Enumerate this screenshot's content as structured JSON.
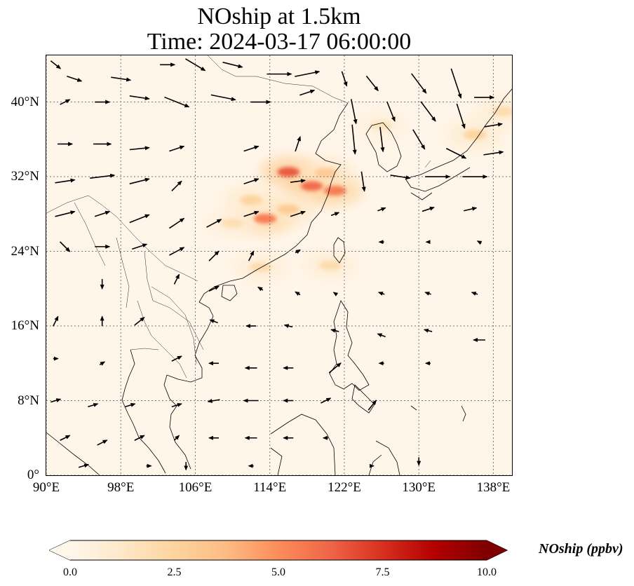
{
  "title": {
    "line1": "NOship at 1.5km",
    "line2": "Time: 2024-03-17 06:00:00"
  },
  "map": {
    "projection": "PlateCarree",
    "lon_range": [
      90,
      140
    ],
    "lat_range": [
      0,
      45
    ],
    "gridlines": "dotted grey",
    "coastlines": true,
    "borders": true,
    "lon_ticks": [
      {
        "value": 90,
        "label": "90°E"
      },
      {
        "value": 98,
        "label": "98°E"
      },
      {
        "value": 106,
        "label": "106°E"
      },
      {
        "value": 114,
        "label": "114°E"
      },
      {
        "value": 122,
        "label": "122°E"
      },
      {
        "value": 130,
        "label": "130°E"
      },
      {
        "value": 138,
        "label": "138°E"
      }
    ],
    "lat_ticks": [
      {
        "value": 0,
        "label": "0°"
      },
      {
        "value": 8,
        "label": "8°N"
      },
      {
        "value": 16,
        "label": "16°N"
      },
      {
        "value": 24,
        "label": "24°N"
      },
      {
        "value": 32,
        "label": "32°N"
      },
      {
        "value": 40,
        "label": "40°N"
      }
    ],
    "field": {
      "variable": "NOship",
      "units": "ppbv",
      "hotspots": [
        {
          "lon": 116,
          "lat": 32.5,
          "value": 6.5
        },
        {
          "lon": 118.5,
          "lat": 31.0,
          "value": 6.0
        },
        {
          "lon": 121,
          "lat": 30.5,
          "value": 5.5
        },
        {
          "lon": 113.5,
          "lat": 27.5,
          "value": 5.5
        },
        {
          "lon": 116,
          "lat": 28.5,
          "value": 3.0
        },
        {
          "lon": 112,
          "lat": 29.5,
          "value": 2.5
        },
        {
          "lon": 120,
          "lat": 32.4,
          "value": 3.0
        },
        {
          "lon": 110,
          "lat": 27.0,
          "value": 1.8
        },
        {
          "lon": 136,
          "lat": 36.5,
          "value": 2.5
        },
        {
          "lon": 139,
          "lat": 39.0,
          "value": 2.0
        },
        {
          "lon": 126,
          "lat": 37.5,
          "value": 1.5
        },
        {
          "lon": 120.5,
          "lat": 22.5,
          "value": 2.0
        },
        {
          "lon": 113,
          "lat": 22.3,
          "value": 2.0
        }
      ]
    },
    "wind_vectors": [
      {
        "lon": 91,
        "lat": 44,
        "u": 1.0,
        "v": -0.8
      },
      {
        "lon": 93,
        "lat": 42.5,
        "u": 1.5,
        "v": -0.5
      },
      {
        "lon": 98,
        "lat": 42.5,
        "u": 2.0,
        "v": -0.3
      },
      {
        "lon": 103,
        "lat": 44,
        "u": 1.5,
        "v": 0.0
      },
      {
        "lon": 106,
        "lat": 44,
        "u": 2.0,
        "v": -1.2
      },
      {
        "lon": 110,
        "lat": 44,
        "u": 2.0,
        "v": -0.5
      },
      {
        "lon": 115,
        "lat": 43,
        "u": 2.5,
        "v": 0.0
      },
      {
        "lon": 118,
        "lat": 43,
        "u": 2.5,
        "v": 0.5
      },
      {
        "lon": 122,
        "lat": 42.5,
        "u": 0.5,
        "v": -1.5
      },
      {
        "lon": 125,
        "lat": 42,
        "u": 1.2,
        "v": -1.5
      },
      {
        "lon": 130,
        "lat": 42,
        "u": 1.5,
        "v": -2.0
      },
      {
        "lon": 134,
        "lat": 42,
        "u": 1.0,
        "v": -3.0
      },
      {
        "lon": 137,
        "lat": 40.5,
        "u": 2.0,
        "v": 0.0
      },
      {
        "lon": 92,
        "lat": 40,
        "u": 1.0,
        "v": 0.5
      },
      {
        "lon": 96,
        "lat": 40,
        "u": 1.5,
        "v": 0.0
      },
      {
        "lon": 100,
        "lat": 40.5,
        "u": 2.0,
        "v": -0.3
      },
      {
        "lon": 104,
        "lat": 40,
        "u": 2.5,
        "v": -1.0
      },
      {
        "lon": 109,
        "lat": 40.5,
        "u": 2.5,
        "v": -0.5
      },
      {
        "lon": 113,
        "lat": 40,
        "u": 2.0,
        "v": 0.0
      },
      {
        "lon": 118,
        "lat": 41,
        "u": 1.5,
        "v": 0.5
      },
      {
        "lon": 123,
        "lat": 39,
        "u": 0.5,
        "v": -2.5
      },
      {
        "lon": 127,
        "lat": 39,
        "u": 0.8,
        "v": -2.0
      },
      {
        "lon": 131,
        "lat": 39,
        "u": 1.5,
        "v": -2.0
      },
      {
        "lon": 134.5,
        "lat": 38.5,
        "u": 0.8,
        "v": -2.5
      },
      {
        "lon": 138,
        "lat": 37.5,
        "u": 1.8,
        "v": 0.3
      },
      {
        "lon": 92,
        "lat": 35.5,
        "u": 1.5,
        "v": 0.0
      },
      {
        "lon": 96,
        "lat": 35.5,
        "u": 1.8,
        "v": 0.0
      },
      {
        "lon": 100,
        "lat": 35,
        "u": 2.0,
        "v": 0.2
      },
      {
        "lon": 104,
        "lat": 35,
        "u": 1.5,
        "v": 0.5
      },
      {
        "lon": 112,
        "lat": 35,
        "u": 1.5,
        "v": 0.5
      },
      {
        "lon": 117,
        "lat": 35.5,
        "u": 0.5,
        "v": 1.5
      },
      {
        "lon": 123,
        "lat": 36,
        "u": 0.3,
        "v": -3.0
      },
      {
        "lon": 126,
        "lat": 36,
        "u": 0.3,
        "v": -2.5
      },
      {
        "lon": 130,
        "lat": 36,
        "u": 1.2,
        "v": -2.0
      },
      {
        "lon": 134,
        "lat": 34.5,
        "u": 2.0,
        "v": -1.0
      },
      {
        "lon": 138,
        "lat": 34.5,
        "u": 2.0,
        "v": 0.3
      },
      {
        "lon": 92,
        "lat": 31.5,
        "u": 2.0,
        "v": 0.3
      },
      {
        "lon": 96,
        "lat": 32,
        "u": 2.5,
        "v": 0.3
      },
      {
        "lon": 100,
        "lat": 31.5,
        "u": 2.0,
        "v": 0.5
      },
      {
        "lon": 104,
        "lat": 31,
        "u": 1.0,
        "v": 1.0
      },
      {
        "lon": 112,
        "lat": 31.5,
        "u": 1.5,
        "v": 0.5
      },
      {
        "lon": 117,
        "lat": 31.5,
        "u": 1.5,
        "v": 0.2
      },
      {
        "lon": 124,
        "lat": 31.5,
        "u": 0.3,
        "v": -2.0
      },
      {
        "lon": 128,
        "lat": 32,
        "u": 2.0,
        "v": -0.3
      },
      {
        "lon": 132,
        "lat": 32,
        "u": 2.5,
        "v": 0.0
      },
      {
        "lon": 136,
        "lat": 32,
        "u": 2.5,
        "v": 0.0
      },
      {
        "lon": 92,
        "lat": 28,
        "u": 2.0,
        "v": 0.5
      },
      {
        "lon": 96,
        "lat": 28,
        "u": 1.5,
        "v": 0.5
      },
      {
        "lon": 100,
        "lat": 27.5,
        "u": 2.0,
        "v": 0.8
      },
      {
        "lon": 104,
        "lat": 27,
        "u": 1.5,
        "v": 1.0
      },
      {
        "lon": 108,
        "lat": 27,
        "u": 1.5,
        "v": 0.8
      },
      {
        "lon": 112,
        "lat": 28,
        "u": 1.5,
        "v": 0.5
      },
      {
        "lon": 117,
        "lat": 28,
        "u": 1.5,
        "v": 0.5
      },
      {
        "lon": 121,
        "lat": 28,
        "u": 0.8,
        "v": 0.3
      },
      {
        "lon": 126,
        "lat": 28.5,
        "u": 0.8,
        "v": 0.3
      },
      {
        "lon": 131,
        "lat": 28.5,
        "u": 1.2,
        "v": 0.4
      },
      {
        "lon": 135.5,
        "lat": 28.5,
        "u": 1.3,
        "v": 0.3
      },
      {
        "lon": 92,
        "lat": 24.5,
        "u": 1.0,
        "v": -1.0
      },
      {
        "lon": 96,
        "lat": 24.5,
        "u": 1.5,
        "v": 0.0
      },
      {
        "lon": 100,
        "lat": 24.5,
        "u": 1.5,
        "v": 0.5
      },
      {
        "lon": 104,
        "lat": 24,
        "u": 1.5,
        "v": 0.8
      },
      {
        "lon": 108,
        "lat": 23.5,
        "u": 1.0,
        "v": 1.0
      },
      {
        "lon": 112,
        "lat": 23.5,
        "u": 0.5,
        "v": 1.0
      },
      {
        "lon": 117,
        "lat": 24,
        "u": 0.5,
        "v": 0.3
      },
      {
        "lon": 126,
        "lat": 25,
        "u": -0.5,
        "v": 0.0
      },
      {
        "lon": 131,
        "lat": 25,
        "u": -0.4,
        "v": 0.0
      },
      {
        "lon": 136.5,
        "lat": 25,
        "u": -0.4,
        "v": 0.2
      },
      {
        "lon": 96,
        "lat": 20.5,
        "u": 0.0,
        "v": -1.0
      },
      {
        "lon": 104,
        "lat": 21,
        "u": 0.5,
        "v": 1.0
      },
      {
        "lon": 108,
        "lat": 20,
        "u": 1.0,
        "v": 0.5
      },
      {
        "lon": 113,
        "lat": 20,
        "u": -0.5,
        "v": 0.3
      },
      {
        "lon": 117,
        "lat": 19.5,
        "u": -0.5,
        "v": 0.3
      },
      {
        "lon": 121,
        "lat": 19.5,
        "u": -0.3,
        "v": 0.2
      },
      {
        "lon": 126,
        "lat": 19.5,
        "u": -0.6,
        "v": 0.2
      },
      {
        "lon": 131,
        "lat": 19.5,
        "u": -0.6,
        "v": 0.2
      },
      {
        "lon": 136,
        "lat": 19.5,
        "u": -0.6,
        "v": 0.2
      },
      {
        "lon": 91,
        "lat": 16.5,
        "u": 0.5,
        "v": 1.0
      },
      {
        "lon": 96,
        "lat": 16.5,
        "u": 0.0,
        "v": 1.0
      },
      {
        "lon": 100,
        "lat": 16.5,
        "u": 1.0,
        "v": 0.8
      },
      {
        "lon": 108,
        "lat": 16.5,
        "u": -0.8,
        "v": 0.3
      },
      {
        "lon": 112,
        "lat": 16,
        "u": -1.0,
        "v": 0.0
      },
      {
        "lon": 116,
        "lat": 16,
        "u": -0.8,
        "v": 0.2
      },
      {
        "lon": 121,
        "lat": 15.5,
        "u": -0.8,
        "v": 0.2
      },
      {
        "lon": 126,
        "lat": 15,
        "u": -0.8,
        "v": 0.3
      },
      {
        "lon": 131,
        "lat": 15.5,
        "u": -0.8,
        "v": 0.2
      },
      {
        "lon": 136.5,
        "lat": 14.5,
        "u": -1.2,
        "v": 0.0
      },
      {
        "lon": 91,
        "lat": 12.5,
        "u": 0.5,
        "v": 0.0
      },
      {
        "lon": 96,
        "lat": 12,
        "u": 0.5,
        "v": 0.3
      },
      {
        "lon": 104,
        "lat": 12.5,
        "u": 1.0,
        "v": 0.5
      },
      {
        "lon": 108,
        "lat": 12,
        "u": -1.0,
        "v": 0.0
      },
      {
        "lon": 112,
        "lat": 11.5,
        "u": -1.2,
        "v": 0.0
      },
      {
        "lon": 116,
        "lat": 11.5,
        "u": -1.0,
        "v": 0.0
      },
      {
        "lon": 121,
        "lat": 11.5,
        "u": 1.2,
        "v": 1.0
      },
      {
        "lon": 126,
        "lat": 12,
        "u": -0.5,
        "v": 0.0
      },
      {
        "lon": 131,
        "lat": 12,
        "u": -0.5,
        "v": 0.0
      },
      {
        "lon": 91,
        "lat": 8,
        "u": 1.0,
        "v": 0.3
      },
      {
        "lon": 95,
        "lat": 7.5,
        "u": 1.0,
        "v": 0.3
      },
      {
        "lon": 99,
        "lat": 7.5,
        "u": 1.0,
        "v": 0.3
      },
      {
        "lon": 104,
        "lat": 7.5,
        "u": 1.0,
        "v": 0.3
      },
      {
        "lon": 108,
        "lat": 8,
        "u": -1.2,
        "v": -0.2
      },
      {
        "lon": 112,
        "lat": 8,
        "u": -1.5,
        "v": 0.0
      },
      {
        "lon": 116,
        "lat": 8,
        "u": -1.0,
        "v": 0.0
      },
      {
        "lon": 120,
        "lat": 8,
        "u": 1.0,
        "v": 0.5
      },
      {
        "lon": 125,
        "lat": 7.5,
        "u": 0.8,
        "v": 1.0
      },
      {
        "lon": 92,
        "lat": 4,
        "u": 1.0,
        "v": 0.5
      },
      {
        "lon": 96,
        "lat": 3.5,
        "u": 1.0,
        "v": 0.5
      },
      {
        "lon": 100,
        "lat": 4,
        "u": 1.0,
        "v": 0.5
      },
      {
        "lon": 104,
        "lat": 4,
        "u": 0.5,
        "v": 0.5
      },
      {
        "lon": 108,
        "lat": 4,
        "u": -1.0,
        "v": 0.0
      },
      {
        "lon": 112,
        "lat": 4,
        "u": -1.2,
        "v": 0.0
      },
      {
        "lon": 116,
        "lat": 4,
        "u": -1.0,
        "v": 0.0
      },
      {
        "lon": 120,
        "lat": 4,
        "u": -0.5,
        "v": 0.0
      },
      {
        "lon": 94,
        "lat": 1,
        "u": 1.0,
        "v": 0.3
      },
      {
        "lon": 101,
        "lat": 1,
        "u": 0.5,
        "v": 0.0
      },
      {
        "lon": 105,
        "lat": 1,
        "u": 0.0,
        "v": -0.8
      },
      {
        "lon": 112,
        "lat": 1,
        "u": -0.5,
        "v": 0.0
      },
      {
        "lon": 118,
        "lat": 1,
        "u": 0.0,
        "v": 0.0
      },
      {
        "lon": 125,
        "lat": 1,
        "u": 0.3,
        "v": 0.0
      },
      {
        "lon": 130,
        "lat": 1.5,
        "u": 0.0,
        "v": -0.8
      }
    ]
  },
  "colorbar": {
    "label": "NOship (ppbv)",
    "colormap": "OrRd",
    "extend": "both",
    "range": [
      0,
      10
    ],
    "stops": [
      "#fff7ec",
      "#fee8c8",
      "#fdd49e",
      "#fdbb84",
      "#fc8d59",
      "#ef6548",
      "#d7301f",
      "#b30000",
      "#7f0000"
    ],
    "ticks": [
      {
        "value": 0,
        "label": "0.0"
      },
      {
        "value": 2.5,
        "label": "2.5"
      },
      {
        "value": 5,
        "label": "5.0"
      },
      {
        "value": 7.5,
        "label": "7.5"
      },
      {
        "value": 10,
        "label": "10.0"
      }
    ]
  }
}
